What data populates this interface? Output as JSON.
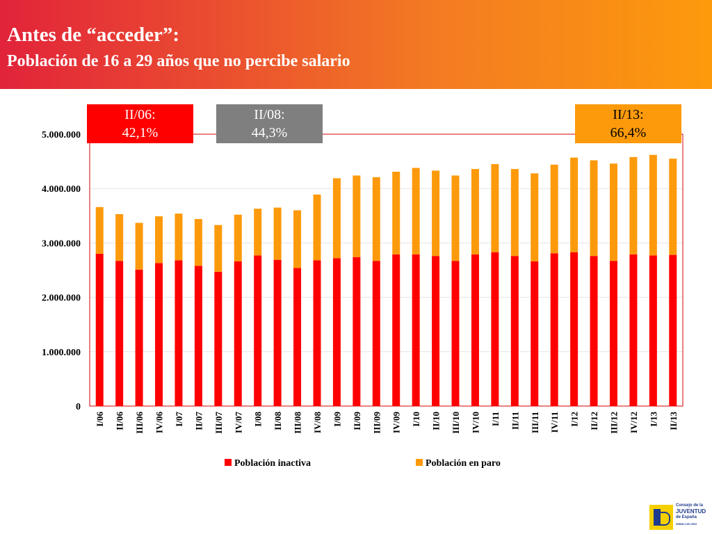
{
  "header": {
    "title": "Antes de “acceder”:",
    "subtitle": "Población de 16 a 29 años que no percibe salario"
  },
  "callouts": [
    {
      "period": "II/06:",
      "value": "42,1%",
      "color": "#ff0000"
    },
    {
      "period": "II/08:",
      "value": "44,3%",
      "color": "#7f7f7f"
    },
    {
      "period": "II/13:",
      "value": "66,4%",
      "color": "#fd9a0c"
    }
  ],
  "logo": {
    "line1": "Consejo de la",
    "line2": "JUVENTUD",
    "line3": "de España",
    "url": "WWW.CJE.ORG"
  },
  "chart_data": {
    "type": "bar",
    "stacked": true,
    "categories": [
      "I/06",
      "II/06",
      "III/06",
      "IV/06",
      "I/07",
      "II/07",
      "III/07",
      "IV/07",
      "I/08",
      "II/08",
      "III/08",
      "IV/08",
      "I/09",
      "II/09",
      "III/09",
      "IV/09",
      "I/10",
      "II/10",
      "III/10",
      "IV/10",
      "I/11",
      "II/11",
      "III/11",
      "IV/11",
      "I/12",
      "II/12",
      "III/12",
      "IV/12",
      "I/13",
      "II/13"
    ],
    "series": [
      {
        "name": "Población inactiva",
        "color": "#ff0000",
        "values": [
          2800000,
          2670000,
          2510000,
          2630000,
          2680000,
          2580000,
          2470000,
          2660000,
          2770000,
          2690000,
          2540000,
          2680000,
          2720000,
          2740000,
          2670000,
          2790000,
          2790000,
          2760000,
          2670000,
          2790000,
          2830000,
          2760000,
          2660000,
          2810000,
          2830000,
          2760000,
          2670000,
          2790000,
          2770000,
          2780000
        ]
      },
      {
        "name": "Población en paro",
        "color": "#fd9a0c",
        "values": [
          860000,
          860000,
          860000,
          860000,
          860000,
          860000,
          860000,
          860000,
          860000,
          960000,
          1060000,
          1210000,
          1470000,
          1500000,
          1540000,
          1520000,
          1590000,
          1570000,
          1570000,
          1570000,
          1620000,
          1600000,
          1620000,
          1630000,
          1740000,
          1760000,
          1790000,
          1790000,
          1850000,
          1770000
        ]
      }
    ],
    "yticks": [
      0,
      1000000,
      2000000,
      3000000,
      4000000,
      5000000
    ],
    "ytick_labels": [
      "0",
      "1.000.000",
      "2.000.000",
      "3.000.000",
      "4.000.000",
      "5.000.000"
    ],
    "ylim": [
      0,
      5000000
    ],
    "grid": true,
    "legend_position": "bottom"
  }
}
